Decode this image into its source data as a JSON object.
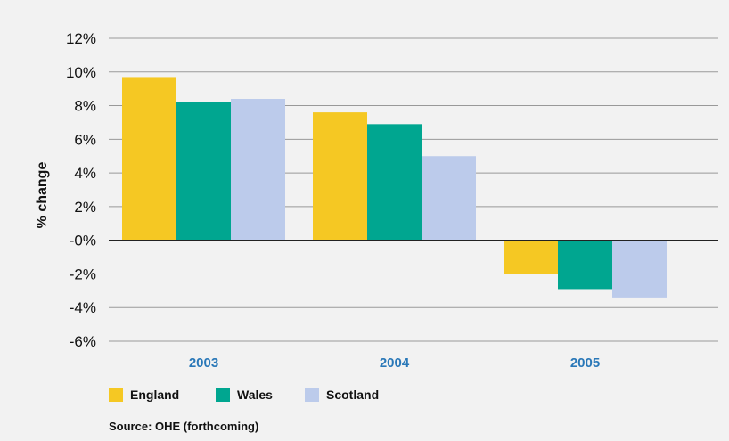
{
  "chart_data": {
    "type": "bar",
    "categories": [
      "2003",
      "2004",
      "2005"
    ],
    "series": [
      {
        "name": "England",
        "color": "#f5c823",
        "values": [
          9.7,
          7.6,
          -2.0
        ]
      },
      {
        "name": "Wales",
        "color": "#00a690",
        "values": [
          8.2,
          6.9,
          -2.9
        ]
      },
      {
        "name": "Scotland",
        "color": "#bccbeb",
        "values": [
          8.4,
          5.0,
          -3.4
        ]
      }
    ],
    "yticks": [
      "12%",
      "10%",
      "8%",
      "6%",
      "4%",
      "2%",
      "-0%",
      "-2%",
      "-4%",
      "-6%"
    ],
    "ytick_values": [
      12,
      10,
      8,
      6,
      4,
      2,
      0,
      -2,
      -4,
      -6
    ],
    "ylim": [
      -6,
      12
    ],
    "ylabel": "% change",
    "xlabel": "",
    "title": "",
    "grid": true,
    "legend_position": "bottom-left",
    "source": "Source: OHE (forthcoming)",
    "colors": {
      "grid": "#999999",
      "zero_line": "#222222",
      "category_label": "#2a78b8",
      "background": "#f2f2f2"
    }
  }
}
